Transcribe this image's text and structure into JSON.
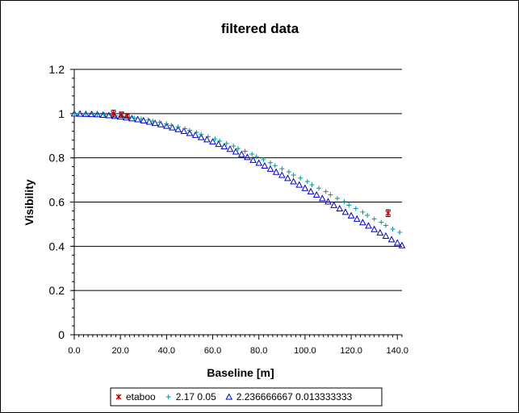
{
  "chart_data": {
    "type": "scatter",
    "title": "filtered data",
    "xlabel": "Baseline [m]",
    "ylabel": "Visibility",
    "xlim": [
      0,
      142
    ],
    "ylim": [
      0,
      1.2
    ],
    "x_ticks": [
      0,
      20,
      40,
      60,
      80,
      100,
      120,
      140
    ],
    "x_tick_labels": [
      "0.0",
      "20.0",
      "40.0",
      "60.0",
      "80.0",
      "100.0",
      "120.0",
      "140.0"
    ],
    "y_ticks": [
      0,
      0.2,
      0.4,
      0.6,
      0.8,
      1,
      1.2
    ],
    "y_tick_labels": [
      "0",
      "0.2",
      "0.4",
      "0.6",
      "0.8",
      "1",
      "1.2"
    ],
    "grid": "horizontal",
    "legend_position": "bottom",
    "series": [
      {
        "name": "etaboo",
        "marker": "asterisk",
        "color": "#cc0000",
        "points": [
          {
            "x": 17.0,
            "y": 1.0,
            "err": 0.015
          },
          {
            "x": 20.5,
            "y": 0.995,
            "err": 0.012
          },
          {
            "x": 23.0,
            "y": 0.99,
            "err": 0.01
          },
          {
            "x": 136.0,
            "y": 0.55,
            "err": 0.015
          }
        ]
      },
      {
        "name": "2.17 0.05",
        "marker": "plus",
        "color": "#009999",
        "points": [
          {
            "x": 0,
            "y": 1.0
          },
          {
            "x": 2,
            "y": 0.999
          },
          {
            "x": 5,
            "y": 0.999
          },
          {
            "x": 8,
            "y": 0.998
          },
          {
            "x": 10,
            "y": 0.997
          },
          {
            "x": 13,
            "y": 0.995
          },
          {
            "x": 16,
            "y": 0.993
          },
          {
            "x": 18,
            "y": 0.991
          },
          {
            "x": 21,
            "y": 0.988
          },
          {
            "x": 24,
            "y": 0.984
          },
          {
            "x": 26,
            "y": 0.98
          },
          {
            "x": 29,
            "y": 0.976
          },
          {
            "x": 32,
            "y": 0.971
          },
          {
            "x": 34,
            "y": 0.966
          },
          {
            "x": 37,
            "y": 0.96
          },
          {
            "x": 40,
            "y": 0.954
          },
          {
            "x": 42,
            "y": 0.947
          },
          {
            "x": 45,
            "y": 0.94
          },
          {
            "x": 48,
            "y": 0.932
          },
          {
            "x": 50,
            "y": 0.924
          },
          {
            "x": 53,
            "y": 0.915
          },
          {
            "x": 55,
            "y": 0.906
          },
          {
            "x": 58,
            "y": 0.896
          },
          {
            "x": 61,
            "y": 0.886
          },
          {
            "x": 63,
            "y": 0.876
          },
          {
            "x": 66,
            "y": 0.865
          },
          {
            "x": 69,
            "y": 0.853
          },
          {
            "x": 71,
            "y": 0.842
          },
          {
            "x": 74,
            "y": 0.83
          },
          {
            "x": 77,
            "y": 0.817
          },
          {
            "x": 79,
            "y": 0.805
          },
          {
            "x": 82,
            "y": 0.792
          },
          {
            "x": 85,
            "y": 0.778
          },
          {
            "x": 87,
            "y": 0.765
          },
          {
            "x": 90,
            "y": 0.751
          },
          {
            "x": 93,
            "y": 0.737
          },
          {
            "x": 95,
            "y": 0.722
          },
          {
            "x": 98,
            "y": 0.708
          },
          {
            "x": 101,
            "y": 0.693
          },
          {
            "x": 103,
            "y": 0.678
          },
          {
            "x": 106,
            "y": 0.663
          },
          {
            "x": 109,
            "y": 0.648
          },
          {
            "x": 111,
            "y": 0.633
          },
          {
            "x": 114,
            "y": 0.617
          },
          {
            "x": 117,
            "y": 0.602
          },
          {
            "x": 119,
            "y": 0.586
          },
          {
            "x": 122,
            "y": 0.571
          },
          {
            "x": 125,
            "y": 0.555
          },
          {
            "x": 127,
            "y": 0.54
          },
          {
            "x": 130,
            "y": 0.524
          },
          {
            "x": 133,
            "y": 0.509
          },
          {
            "x": 135,
            "y": 0.494
          },
          {
            "x": 138,
            "y": 0.478
          },
          {
            "x": 141,
            "y": 0.463
          }
        ]
      },
      {
        "name": "2.236666667 0.013333333",
        "marker": "triangle",
        "color": "#0000cc",
        "points": [
          {
            "x": 0,
            "y": 1.0
          },
          {
            "x": 2.5,
            "y": 0.999
          },
          {
            "x": 5,
            "y": 0.998
          },
          {
            "x": 7.5,
            "y": 0.997
          },
          {
            "x": 10,
            "y": 0.996
          },
          {
            "x": 12.5,
            "y": 0.994
          },
          {
            "x": 15,
            "y": 0.992
          },
          {
            "x": 17.5,
            "y": 0.989
          },
          {
            "x": 20,
            "y": 0.986
          },
          {
            "x": 22.5,
            "y": 0.982
          },
          {
            "x": 25,
            "y": 0.978
          },
          {
            "x": 27.5,
            "y": 0.974
          },
          {
            "x": 30,
            "y": 0.969
          },
          {
            "x": 32.5,
            "y": 0.963
          },
          {
            "x": 35,
            "y": 0.957
          },
          {
            "x": 37.5,
            "y": 0.951
          },
          {
            "x": 40,
            "y": 0.944
          },
          {
            "x": 42.5,
            "y": 0.937
          },
          {
            "x": 45,
            "y": 0.929
          },
          {
            "x": 47.5,
            "y": 0.921
          },
          {
            "x": 50,
            "y": 0.912
          },
          {
            "x": 52.5,
            "y": 0.903
          },
          {
            "x": 55,
            "y": 0.893
          },
          {
            "x": 57.5,
            "y": 0.883
          },
          {
            "x": 60,
            "y": 0.873
          },
          {
            "x": 62.5,
            "y": 0.862
          },
          {
            "x": 65,
            "y": 0.851
          },
          {
            "x": 67.5,
            "y": 0.84
          },
          {
            "x": 70,
            "y": 0.828
          },
          {
            "x": 72.5,
            "y": 0.816
          },
          {
            "x": 75,
            "y": 0.803
          },
          {
            "x": 77.5,
            "y": 0.79
          },
          {
            "x": 80,
            "y": 0.777
          },
          {
            "x": 82.5,
            "y": 0.764
          },
          {
            "x": 85,
            "y": 0.75
          },
          {
            "x": 87.5,
            "y": 0.736
          },
          {
            "x": 90,
            "y": 0.722
          },
          {
            "x": 92.5,
            "y": 0.708
          },
          {
            "x": 95,
            "y": 0.693
          },
          {
            "x": 97.5,
            "y": 0.678
          },
          {
            "x": 100,
            "y": 0.663
          },
          {
            "x": 102.5,
            "y": 0.648
          },
          {
            "x": 105,
            "y": 0.633
          },
          {
            "x": 107.5,
            "y": 0.617
          },
          {
            "x": 110,
            "y": 0.602
          },
          {
            "x": 112.5,
            "y": 0.586
          },
          {
            "x": 115,
            "y": 0.571
          },
          {
            "x": 117.5,
            "y": 0.555
          },
          {
            "x": 120,
            "y": 0.539
          },
          {
            "x": 122.5,
            "y": 0.524
          },
          {
            "x": 125,
            "y": 0.508
          },
          {
            "x": 127.5,
            "y": 0.493
          },
          {
            "x": 130,
            "y": 0.477
          },
          {
            "x": 132.5,
            "y": 0.462
          },
          {
            "x": 135,
            "y": 0.447
          },
          {
            "x": 137.5,
            "y": 0.431
          },
          {
            "x": 140,
            "y": 0.416
          },
          {
            "x": 142,
            "y": 0.404
          }
        ]
      }
    ]
  }
}
